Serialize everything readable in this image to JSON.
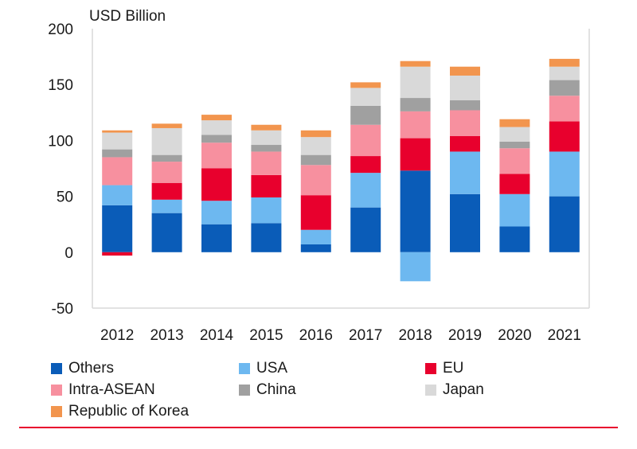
{
  "chart_data": {
    "type": "bar",
    "stacked": true,
    "unit_label": "USD Billion",
    "ylim": [
      -50,
      200
    ],
    "yticks": [
      -50,
      0,
      50,
      100,
      150,
      200
    ],
    "categories": [
      "2012",
      "2013",
      "2014",
      "2015",
      "2016",
      "2017",
      "2018",
      "2019",
      "2020",
      "2021"
    ],
    "series": [
      {
        "name": "Others",
        "color": "#0a5cb8",
        "values": [
          42,
          35,
          25,
          26,
          7,
          40,
          73,
          52,
          23,
          50
        ]
      },
      {
        "name": "USA",
        "color": "#6db8f0",
        "values": [
          18,
          12,
          21,
          23,
          13,
          31,
          -26,
          38,
          29,
          40
        ]
      },
      {
        "name": "EU",
        "color": "#e8002d",
        "values": [
          -3,
          15,
          29,
          20,
          31,
          15,
          29,
          14,
          18,
          27
        ]
      },
      {
        "name": "Intra-ASEAN",
        "color": "#f7909f",
        "values": [
          25,
          19,
          23,
          21,
          27,
          28,
          24,
          23,
          23,
          23
        ]
      },
      {
        "name": "China",
        "color": "#a0a0a0",
        "values": [
          7,
          6,
          7,
          6,
          9,
          17,
          12,
          9,
          6,
          14
        ]
      },
      {
        "name": "Japan",
        "color": "#d9d9d9",
        "values": [
          15,
          24,
          13,
          13,
          16,
          16,
          28,
          22,
          13,
          12
        ]
      },
      {
        "name": "Republic of Korea",
        "color": "#f2954e",
        "values": [
          2,
          4,
          5,
          5,
          6,
          5,
          5,
          8,
          7,
          7
        ]
      }
    ],
    "legend_position": "bottom",
    "grid": false
  },
  "colors": {
    "axis": "#d9d9d9",
    "footer_rule": "#e8002d"
  }
}
